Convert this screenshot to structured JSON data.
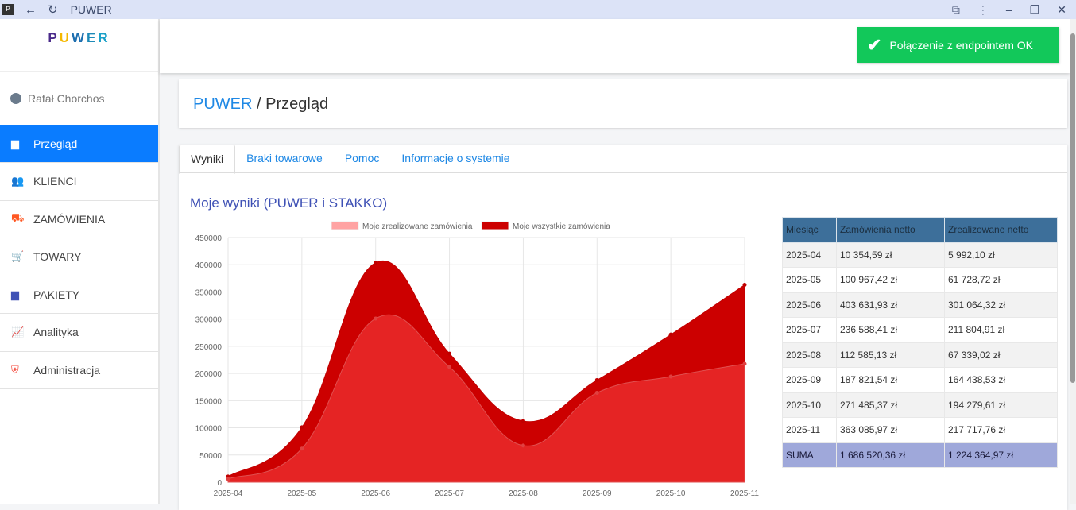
{
  "window": {
    "title": "PUWER",
    "app_icon": "P"
  },
  "logo": "PUWER",
  "user": {
    "name": "Rafał Chorchos"
  },
  "sidebar": {
    "items": [
      {
        "label": "Przegląd",
        "icon": "calendar-icon",
        "color": "#ffffff",
        "active": true
      },
      {
        "label": "KLIENCI",
        "icon": "users-icon",
        "color": "#29a8e0"
      },
      {
        "label": "ZAMÓWIENIA",
        "icon": "truck-icon",
        "color": "#ff5722"
      },
      {
        "label": "TOWARY",
        "icon": "cart-icon",
        "color": "#2ecc40"
      },
      {
        "label": "PAKIETY",
        "icon": "box-icon",
        "color": "#3f51b5"
      },
      {
        "label": "Analityka",
        "icon": "chart-line-icon",
        "color": "#009688"
      },
      {
        "label": "Administracja",
        "icon": "user-shield-icon",
        "color": "#f44336"
      }
    ]
  },
  "toast": {
    "text": "Połączenie z endpointem OK"
  },
  "breadcrumb": {
    "root": "PUWER",
    "sep": " / ",
    "current": "Przegląd"
  },
  "tabs": [
    {
      "label": "Wyniki",
      "active": true
    },
    {
      "label": "Braki towarowe"
    },
    {
      "label": "Pomoc"
    },
    {
      "label": "Informacje o systemie"
    }
  ],
  "section_title": "Moje wyniki (PUWER i STAKKO)",
  "table": {
    "headers": [
      "Miesiąc",
      "Zamówienia netto",
      "Zrealizowane netto"
    ],
    "rows": [
      [
        "2025-04",
        "10 354,59 zł",
        "5 992,10 zł"
      ],
      [
        "2025-05",
        "100 967,42 zł",
        "61 728,72 zł"
      ],
      [
        "2025-06",
        "403 631,93 zł",
        "301 064,32 zł"
      ],
      [
        "2025-07",
        "236 588,41 zł",
        "211 804,91 zł"
      ],
      [
        "2025-08",
        "112 585,13 zł",
        "67 339,02 zł"
      ],
      [
        "2025-09",
        "187 821,54 zł",
        "164 438,53 zł"
      ],
      [
        "2025-10",
        "271 485,37 zł",
        "194 279,61 zł"
      ],
      [
        "2025-11",
        "363 085,97 zł",
        "217 717,76 zł"
      ]
    ],
    "sum": [
      "SUMA",
      "1 686 520,36 zł",
      "1 224 364,97 zł"
    ]
  },
  "chart_data": {
    "type": "area",
    "categories": [
      "2025-04",
      "2025-05",
      "2025-06",
      "2025-07",
      "2025-08",
      "2025-09",
      "2025-10",
      "2025-11"
    ],
    "series": [
      {
        "name": "Moje zrealizowane zamówienia",
        "color": "#ffa3a3",
        "values": [
          5992.1,
          61728.72,
          301064.32,
          211804.91,
          67339.02,
          164438.53,
          194279.61,
          217717.76
        ]
      },
      {
        "name": "Moje wszystkie zamówienia",
        "color": "#cc0000",
        "values": [
          10354.59,
          100967.42,
          403631.93,
          236588.41,
          112585.13,
          187821.54,
          271485.37,
          363085.97
        ]
      }
    ],
    "ylim": [
      0,
      450000
    ],
    "yticks": [
      0,
      50000,
      100000,
      150000,
      200000,
      250000,
      300000,
      350000,
      400000,
      450000
    ],
    "grid": true,
    "legend": "top"
  }
}
